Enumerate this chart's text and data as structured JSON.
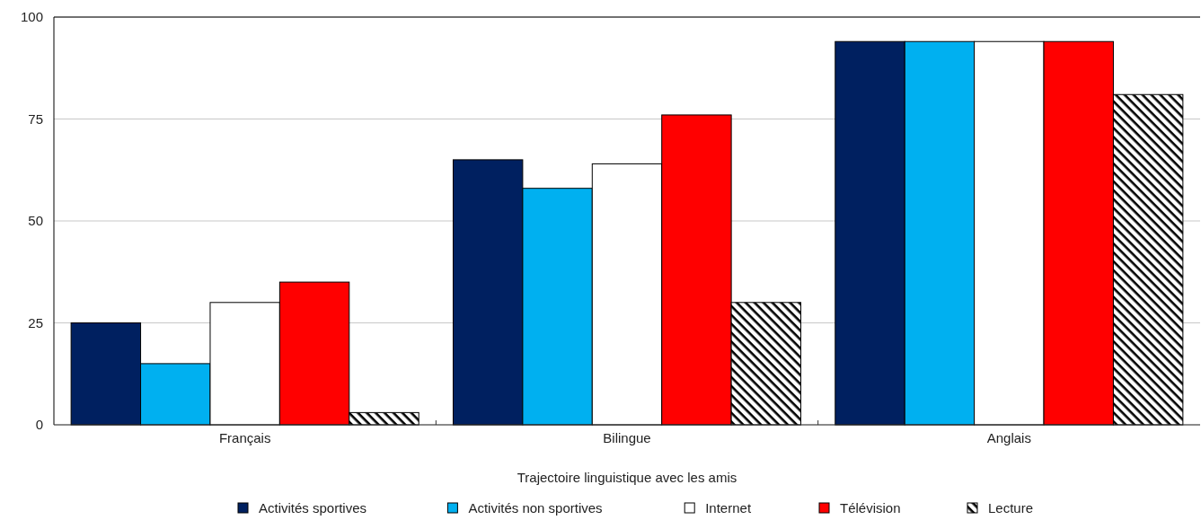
{
  "chart_data": {
    "type": "bar",
    "xlabel": "Trajectoire linguistique avec les amis",
    "categories": [
      "Français",
      "Bilingue",
      "Anglais"
    ],
    "series": [
      {
        "name": "Activités sportives",
        "color": "#002060",
        "values": [
          25,
          65,
          94
        ]
      },
      {
        "name": "Activités non sportives",
        "color": "#00b0f0",
        "values": [
          15,
          58,
          94
        ]
      },
      {
        "name": "Internet",
        "color": "#ffffff",
        "values": [
          30,
          64,
          94
        ]
      },
      {
        "name": "Télévision",
        "color": "#ff0000",
        "values": [
          35,
          76,
          94
        ]
      },
      {
        "name": "Lecture",
        "color": "#000000",
        "type": "bar",
        "values": [
          3,
          30,
          81
        ]
      }
    ],
    "ylim": [
      0,
      100
    ],
    "yticks": [
      0,
      25,
      50,
      75,
      100
    ],
    "grid": "y",
    "legend": "bottom"
  }
}
